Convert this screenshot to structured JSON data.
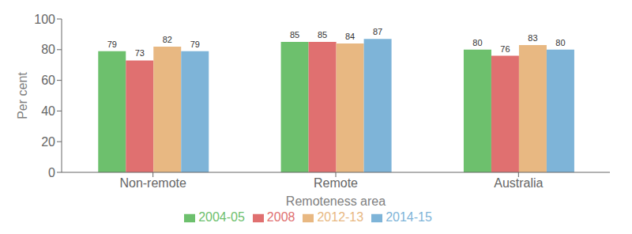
{
  "chart_data": {
    "type": "bar",
    "categories": [
      "Non-remote",
      "Remote",
      "Australia"
    ],
    "series": [
      {
        "name": "2004-05",
        "color": "#6DC06D",
        "values": [
          79,
          85,
          80
        ]
      },
      {
        "name": "2008",
        "color": "#E07070",
        "values": [
          73,
          85,
          76
        ]
      },
      {
        "name": "2012-13",
        "color": "#E8B882",
        "values": [
          82,
          84,
          83
        ]
      },
      {
        "name": "2014-15",
        "color": "#7EB4D8",
        "values": [
          79,
          87,
          80
        ]
      }
    ],
    "xlabel": "Remoteness area",
    "ylabel": "Per cent",
    "ylim": [
      0,
      100
    ],
    "yticks": [
      0,
      20,
      40,
      60,
      80,
      100
    ],
    "grid": false,
    "data_labels": true,
    "legend": "bottom"
  }
}
